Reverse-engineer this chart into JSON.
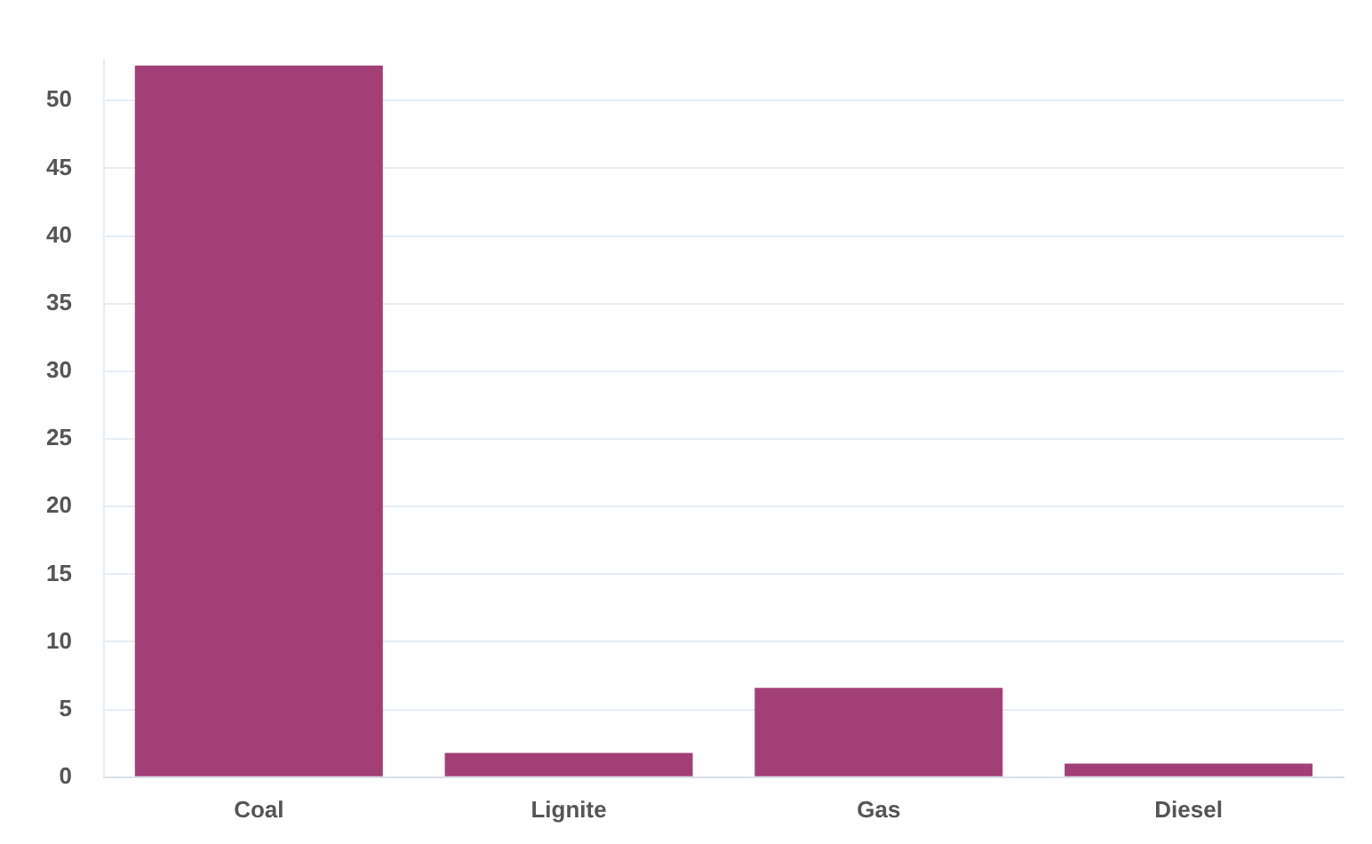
{
  "chart_data": {
    "type": "bar",
    "categories": [
      "Coal",
      "Lignite",
      "Gas",
      "Diesel"
    ],
    "values": [
      52.6,
      1.8,
      6.6,
      1.0
    ],
    "color": "#a23f77",
    "ylim": [
      0,
      53
    ],
    "yticks": [
      0,
      5,
      10,
      15,
      20,
      25,
      30,
      35,
      40,
      45,
      50
    ],
    "grid": "y",
    "legend": false
  }
}
